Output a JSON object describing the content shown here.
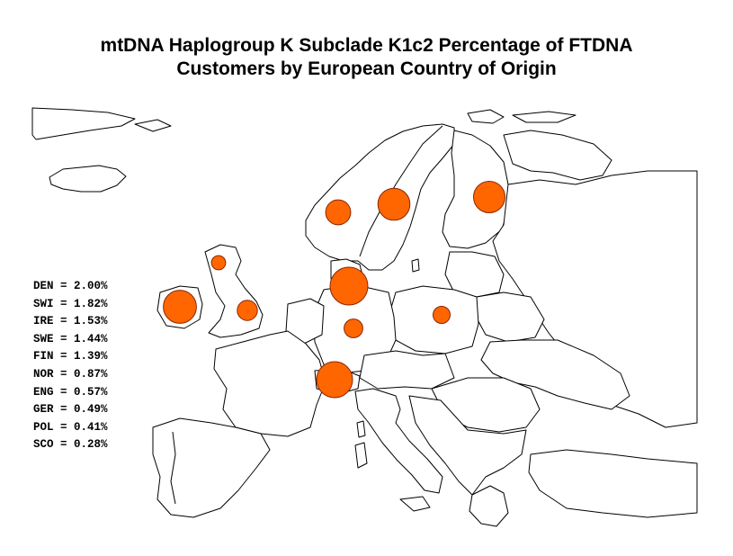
{
  "title_line1": "mtDNA Haplogroup K Subclade K1c2  Percentage of FTDNA",
  "title_line2": "Customers by European Country of Origin",
  "marker_color": "#FF6600",
  "marker_stroke": "#8B2500",
  "countries": [
    {
      "code": "DEN",
      "label": "DEN = 2.00%",
      "percent": 2.0
    },
    {
      "code": "SWI",
      "label": "SWI = 1.82%",
      "percent": 1.82
    },
    {
      "code": "IRE",
      "label": "IRE = 1.53%",
      "percent": 1.53
    },
    {
      "code": "SWE",
      "label": "SWE = 1.44%",
      "percent": 1.44
    },
    {
      "code": "FIN",
      "label": "FIN = 1.39%",
      "percent": 1.39
    },
    {
      "code": "NOR",
      "label": "NOR = 0.87%",
      "percent": 0.87
    },
    {
      "code": "ENG",
      "label": "ENG = 0.57%",
      "percent": 0.57
    },
    {
      "code": "GER",
      "label": "GER = 0.49%",
      "percent": 0.49
    },
    {
      "code": "POL",
      "label": "POL = 0.41%",
      "percent": 0.41
    },
    {
      "code": "SCO",
      "label": "SCO = 0.28%",
      "percent": 0.28
    }
  ]
}
